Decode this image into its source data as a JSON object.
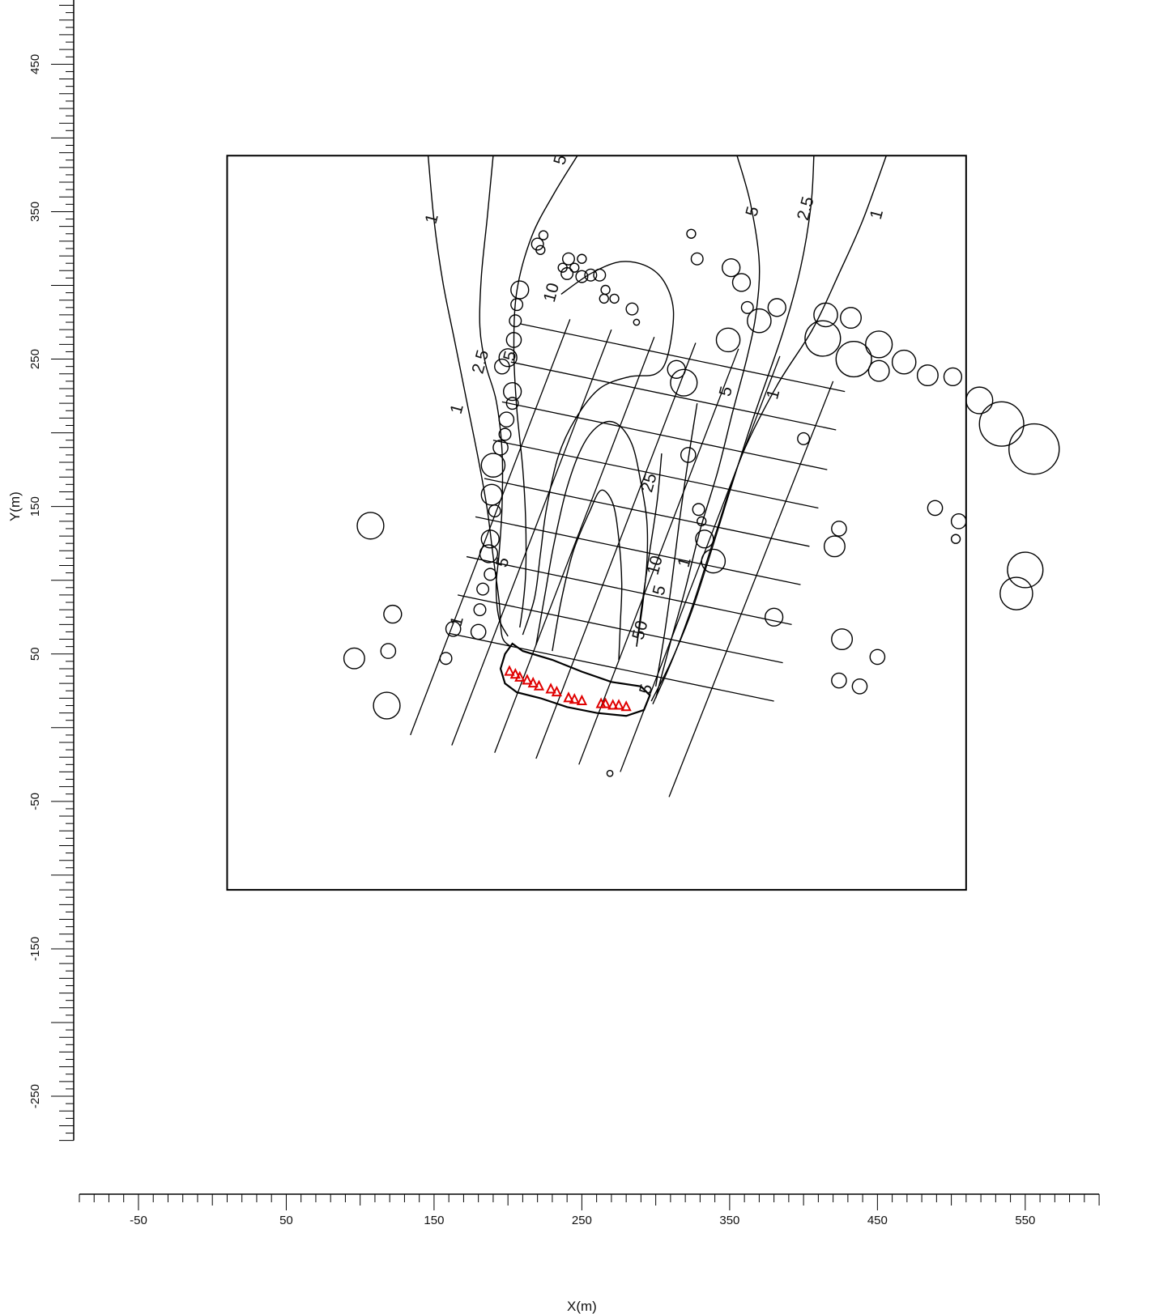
{
  "chart_data": {
    "type": "contour",
    "xlabel": "X(m)",
    "ylabel": "Y(m)",
    "xlim": [
      -90,
      600
    ],
    "ylim": [
      -280,
      535
    ],
    "x_tick_labels": [
      -50,
      50,
      150,
      250,
      350,
      450,
      550
    ],
    "y_tick_labels": [
      -250,
      -150,
      -50,
      50,
      150,
      250,
      350,
      450
    ],
    "x_minor_step": 10,
    "y_minor_step": 5,
    "domain_box": {
      "x": [
        10,
        510
      ],
      "y": [
        -110,
        388
      ]
    },
    "grid_lines": {
      "long": [
        [
          [
            134,
            -5
          ],
          [
            242,
            277
          ]
        ],
        [
          [
            162,
            -12
          ],
          [
            270,
            270
          ]
        ],
        [
          [
            191,
            -17
          ],
          [
            299,
            265
          ]
        ],
        [
          [
            219,
            -21
          ],
          [
            327,
            261
          ]
        ],
        [
          [
            248,
            -25
          ],
          [
            356,
            257
          ]
        ],
        [
          [
            276,
            -30
          ],
          [
            384,
            252
          ]
        ],
        [
          [
            309,
            -47
          ],
          [
            420,
            235
          ]
        ]
      ],
      "cross": [
        [
          [
            160,
            64
          ],
          [
            380,
            18
          ]
        ],
        [
          [
            166,
            90
          ],
          [
            386,
            44
          ]
        ],
        [
          [
            172,
            116
          ],
          [
            392,
            70
          ]
        ],
        [
          [
            178,
            143
          ],
          [
            398,
            97
          ]
        ],
        [
          [
            184,
            169
          ],
          [
            404,
            123
          ]
        ],
        [
          [
            190,
            195
          ],
          [
            410,
            149
          ]
        ],
        [
          [
            196,
            221
          ],
          [
            416,
            175
          ]
        ],
        [
          [
            202,
            248
          ],
          [
            422,
            202
          ]
        ],
        [
          [
            208,
            274
          ],
          [
            428,
            228
          ]
        ]
      ]
    },
    "contours": [
      {
        "level": 1,
        "points": [
          [
            146,
            388
          ],
          [
            150,
            344
          ],
          [
            156,
            302
          ],
          [
            164,
            262
          ],
          [
            172,
            222
          ],
          [
            180,
            182
          ],
          [
            186,
            148
          ],
          [
            190,
            116
          ],
          [
            194,
            86
          ],
          [
            196,
            62
          ],
          [
            202,
            55
          ]
        ]
      },
      {
        "level": 2.5,
        "points": [
          [
            190,
            388
          ],
          [
            186,
            346
          ],
          [
            182,
            306
          ],
          [
            181,
            272
          ],
          [
            185,
            246
          ],
          [
            192,
            222
          ],
          [
            196,
            188
          ],
          [
            196,
            150
          ],
          [
            194,
            118
          ],
          [
            192,
            96
          ],
          [
            194,
            74
          ],
          [
            200,
            62
          ]
        ]
      },
      {
        "level": 5,
        "points": [
          [
            247,
            388
          ],
          [
            231,
            362
          ],
          [
            216,
            333
          ],
          [
            206,
            296
          ],
          [
            204,
            256
          ],
          [
            206,
            216
          ],
          [
            210,
            176
          ],
          [
            212,
            140
          ],
          [
            212,
            105
          ],
          [
            210,
            82
          ],
          [
            208,
            68
          ]
        ]
      },
      {
        "level": 10,
        "points": [
          [
            210,
            63
          ],
          [
            218,
            88
          ],
          [
            222,
            118
          ],
          [
            226,
            148
          ],
          [
            234,
            184
          ],
          [
            246,
            210
          ],
          [
            262,
            230
          ],
          [
            282,
            238
          ],
          [
            300,
            240
          ],
          [
            308,
            252
          ],
          [
            312,
            282
          ],
          [
            306,
            302
          ],
          [
            294,
            313
          ],
          [
            276,
            316
          ],
          [
            256,
            308
          ],
          [
            236,
            294
          ]
        ]
      },
      {
        "level": 25,
        "points": [
          [
            219,
            56
          ],
          [
            225,
            90
          ],
          [
            231,
            124
          ],
          [
            240,
            163
          ],
          [
            251,
            192
          ],
          [
            263,
            206
          ],
          [
            274,
            206
          ],
          [
            284,
            192
          ],
          [
            290,
            166
          ],
          [
            294,
            140
          ],
          [
            294,
            112
          ],
          [
            291,
            82
          ],
          [
            287,
            55
          ]
        ]
      },
      {
        "level": 50,
        "points": [
          [
            230,
            52
          ],
          [
            236,
            86
          ],
          [
            244,
            119
          ],
          [
            255,
            146
          ],
          [
            263,
            161
          ],
          [
            271,
            152
          ],
          [
            275,
            128
          ],
          [
            277,
            98
          ],
          [
            276,
            70
          ],
          [
            275,
            46
          ]
        ]
      },
      {
        "level": 25,
        "points": [
          [
            287,
            55
          ],
          [
            291,
            86
          ],
          [
            296,
            120
          ],
          [
            301,
            154
          ],
          [
            304,
            186
          ]
        ]
      },
      {
        "level": 10,
        "points": [
          [
            300,
            28
          ],
          [
            306,
            64
          ],
          [
            311,
            100
          ],
          [
            316,
            140
          ],
          [
            322,
            182
          ],
          [
            328,
            220
          ]
        ]
      },
      {
        "level": 5,
        "points": [
          [
            300,
            20
          ],
          [
            310,
            58
          ],
          [
            320,
            94
          ],
          [
            330,
            134
          ],
          [
            342,
            174
          ],
          [
            352,
            214
          ],
          [
            362,
            252
          ],
          [
            368,
            282
          ],
          [
            370,
            316
          ],
          [
            364,
            356
          ],
          [
            355,
            388
          ]
        ]
      },
      {
        "level": 2.5,
        "points": [
          [
            297,
            18
          ],
          [
            310,
            44
          ],
          [
            324,
            78
          ],
          [
            337,
            118
          ],
          [
            350,
            160
          ],
          [
            366,
            210
          ],
          [
            386,
            268
          ],
          [
            398,
            312
          ],
          [
            405,
            354
          ],
          [
            407,
            388
          ]
        ]
      },
      {
        "level": 1,
        "points": [
          [
            298,
            16
          ],
          [
            312,
            48
          ],
          [
            326,
            86
          ],
          [
            340,
            130
          ],
          [
            358,
            184
          ],
          [
            382,
            232
          ],
          [
            406,
            270
          ],
          [
            424,
            308
          ],
          [
            440,
            344
          ],
          [
            456,
            388
          ]
        ]
      }
    ],
    "contour_labels": [
      {
        "text": "1",
        "x": 149,
        "y": 345
      },
      {
        "text": "1",
        "x": 166,
        "y": 216
      },
      {
        "text": "1",
        "x": 166,
        "y": 72
      },
      {
        "text": "2.5",
        "x": 182,
        "y": 248
      },
      {
        "text": "5",
        "x": 202,
        "y": 252
      },
      {
        "text": "5",
        "x": 197,
        "y": 112
      },
      {
        "text": "5",
        "x": 236,
        "y": 385
      },
      {
        "text": "10",
        "x": 230,
        "y": 295
      },
      {
        "text": "25",
        "x": 296,
        "y": 166
      },
      {
        "text": "10",
        "x": 300,
        "y": 110
      },
      {
        "text": "5",
        "x": 303,
        "y": 93
      },
      {
        "text": "50",
        "x": 290,
        "y": 66
      },
      {
        "text": "5",
        "x": 348,
        "y": 228
      },
      {
        "text": "5",
        "x": 366,
        "y": 350
      },
      {
        "text": "2.5",
        "x": 402,
        "y": 352
      },
      {
        "text": "1",
        "x": 450,
        "y": 348
      },
      {
        "text": "1",
        "x": 380,
        "y": 226
      },
      {
        "text": "1",
        "x": 320,
        "y": 112
      },
      {
        "text": "5",
        "x": 294,
        "y": 26
      }
    ],
    "buildings": [
      [
        107,
        137,
        9
      ],
      [
        122,
        77,
        6
      ],
      [
        119,
        52,
        5
      ],
      [
        96,
        47,
        7
      ],
      [
        118,
        15,
        9
      ],
      [
        158,
        47,
        4
      ],
      [
        163,
        67,
        5
      ],
      [
        180,
        65,
        5
      ],
      [
        181,
        80,
        4
      ],
      [
        183,
        94,
        4
      ],
      [
        188,
        104,
        4
      ],
      [
        187,
        118,
        6
      ],
      [
        188,
        128,
        6
      ],
      [
        191,
        147,
        4
      ],
      [
        189,
        158,
        7
      ],
      [
        190,
        178,
        8
      ],
      [
        195,
        190,
        5
      ],
      [
        198,
        199,
        4
      ],
      [
        199,
        209,
        5
      ],
      [
        203,
        220,
        4
      ],
      [
        203,
        228,
        6
      ],
      [
        196,
        245,
        5
      ],
      [
        200,
        251,
        6
      ],
      [
        204,
        263,
        5
      ],
      [
        205,
        276,
        4
      ],
      [
        206,
        287,
        4
      ],
      [
        208,
        297,
        6
      ],
      [
        220,
        328,
        4
      ],
      [
        222,
        324,
        3
      ],
      [
        224,
        334,
        3
      ],
      [
        237,
        312,
        3
      ],
      [
        240,
        308,
        4
      ],
      [
        241,
        318,
        4
      ],
      [
        245,
        312,
        3
      ],
      [
        250,
        306,
        4
      ],
      [
        250,
        318,
        3
      ],
      [
        256,
        307,
        4
      ],
      [
        262,
        307,
        4
      ],
      [
        265,
        291,
        3
      ],
      [
        266,
        297,
        3
      ],
      [
        272,
        291,
        3
      ],
      [
        284,
        284,
        4
      ],
      [
        287,
        275,
        2
      ],
      [
        324,
        335,
        3
      ],
      [
        328,
        318,
        4
      ],
      [
        351,
        312,
        6
      ],
      [
        358,
        302,
        6
      ],
      [
        362,
        285,
        4
      ],
      [
        370,
        276,
        8
      ],
      [
        382,
        285,
        6
      ],
      [
        349,
        263,
        8
      ],
      [
        415,
        280,
        8
      ],
      [
        413,
        264,
        12
      ],
      [
        432,
        278,
        7
      ],
      [
        434,
        250,
        12
      ],
      [
        451,
        260,
        9
      ],
      [
        451,
        242,
        7
      ],
      [
        468,
        248,
        8
      ],
      [
        484,
        239,
        7
      ],
      [
        501,
        238,
        6
      ],
      [
        519,
        222,
        9
      ],
      [
        534,
        206,
        15
      ],
      [
        556,
        189,
        17
      ],
      [
        314,
        243,
        6
      ],
      [
        319,
        234,
        9
      ],
      [
        322,
        185,
        5
      ],
      [
        329,
        148,
        4
      ],
      [
        331,
        140,
        3
      ],
      [
        333,
        128,
        6
      ],
      [
        339,
        113,
        8
      ],
      [
        400,
        196,
        4
      ],
      [
        380,
        75,
        6
      ],
      [
        421,
        123,
        7
      ],
      [
        424,
        135,
        5
      ],
      [
        426,
        60,
        7
      ],
      [
        424,
        32,
        5
      ],
      [
        438,
        28,
        5
      ],
      [
        450,
        48,
        5
      ],
      [
        489,
        149,
        5
      ],
      [
        505,
        140,
        5
      ],
      [
        503,
        128,
        3
      ],
      [
        550,
        107,
        12
      ],
      [
        544,
        91,
        11
      ],
      [
        269,
        -31,
        2
      ]
    ],
    "sources": [
      [
        201,
        38
      ],
      [
        205,
        36
      ],
      [
        208,
        34
      ],
      [
        213,
        32
      ],
      [
        217,
        30
      ],
      [
        221,
        28
      ],
      [
        229,
        26
      ],
      [
        233,
        24
      ],
      [
        241,
        20
      ],
      [
        245,
        19
      ],
      [
        250,
        18
      ],
      [
        263,
        16
      ],
      [
        266,
        16
      ],
      [
        271,
        15
      ],
      [
        275,
        15
      ],
      [
        280,
        14
      ]
    ],
    "colors": {
      "line": "#000000",
      "source": "#e00000",
      "background": "#ffffff"
    }
  }
}
